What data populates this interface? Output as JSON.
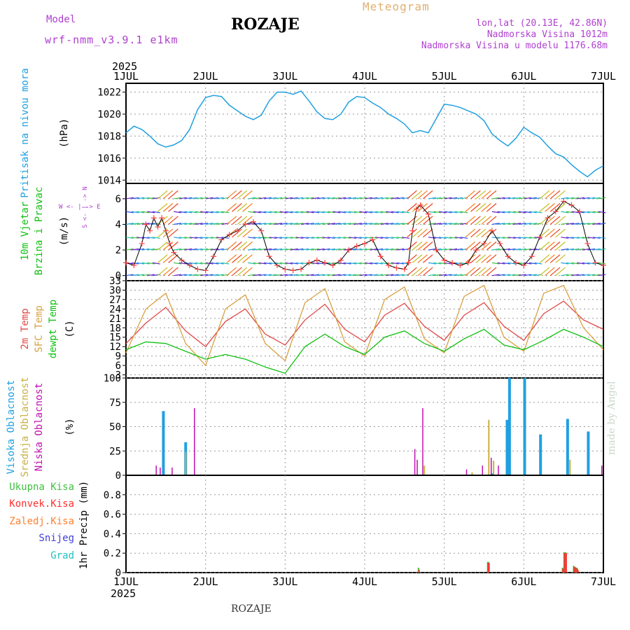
{
  "header": {
    "model_label": "Model",
    "model_name": "wrf-nmm_v3.9.1 e1km",
    "title": "ROZAJE",
    "meteogram_label": "Meteogram",
    "lonlat": "lon,lat (20.13E, 42.86N)",
    "elevation": "Nadmorska Visina 1012m",
    "model_elevation": "Nadmorska Visina u modelu 1176.68m"
  },
  "footer": {
    "station": "ROZAJE",
    "credit": "made by Angel"
  },
  "time_axis": {
    "year": "2025",
    "ticks": [
      "1JUL",
      "2JUL",
      "3JUL",
      "4JUL",
      "5JUL",
      "6JUL",
      "7JUL"
    ]
  },
  "colors": {
    "pressure": "#20a0e0",
    "wind_line": "#000000",
    "wind_marker": "#ff4040",
    "t2m": "#e04848",
    "sfc": "#d8a040",
    "dewpt": "#10c010",
    "high_cloud": "#20a0e0",
    "mid_cloud": "#c8b040",
    "low_cloud": "#c010b0",
    "total_precip": "#40c040",
    "conv_precip": "#ff3030",
    "frz_precip": "#ff8030",
    "snow": "#4040e0",
    "hail": "#20c0c0"
  },
  "panels": {
    "pressure": {
      "label": "Pritisak na nivou mora",
      "unit": "(hPa)"
    },
    "wind": {
      "label1": "10m Vjetar",
      "label2": "Brzina i Pravac",
      "unit": "(m/s)",
      "compass": "W <- | -> E",
      "compass_ns": "S <- | -> N"
    },
    "temp": {
      "label_t2m": "2m Temp",
      "label_sfc": "SFC Temp",
      "label_dew": "dewpt Temp",
      "unit": "(C)"
    },
    "cloud": {
      "label_high": "Visoka Oblacnost",
      "label_mid": "Srednja Oblacnost",
      "label_low": "Niska Oblacnost",
      "unit": "(%)"
    },
    "precip": {
      "label_total": "Ukupna Kisa",
      "label_conv": "Konvek.Kisa",
      "label_frz": "Zaledj.Kisa",
      "label_snow": "Snijeg",
      "label_hail": "Grad",
      "unit": "1hr Precip (mm)"
    }
  },
  "chart_data": [
    {
      "type": "line",
      "title": "Pritisak na nivou mora",
      "ylabel": "(hPa)",
      "x_unit": "days since 1JUL 00 UTC",
      "ylim": [
        1013.7,
        1022.8
      ],
      "yticks": [
        1014,
        1016,
        1018,
        1020,
        1022
      ],
      "grid": true,
      "series": [
        {
          "name": "Pritisak na nivou mora",
          "x": [
            0,
            0.1,
            0.2,
            0.3,
            0.4,
            0.5,
            0.6,
            0.7,
            0.8,
            0.9,
            1.0,
            1.1,
            1.2,
            1.3,
            1.4,
            1.5,
            1.6,
            1.7,
            1.8,
            1.9,
            2.0,
            2.1,
            2.2,
            2.3,
            2.4,
            2.5,
            2.6,
            2.7,
            2.8,
            2.9,
            3.0,
            3.1,
            3.2,
            3.3,
            3.4,
            3.5,
            3.6,
            3.7,
            3.8,
            3.9,
            4.0,
            4.1,
            4.2,
            4.3,
            4.4,
            4.5,
            4.6,
            4.7,
            4.8,
            4.9,
            5.0,
            5.1,
            5.2,
            5.3,
            5.4,
            5.5,
            5.6,
            5.7,
            5.8,
            5.9,
            6.0
          ],
          "y": [
            1018.3,
            1018.9,
            1018.6,
            1018.0,
            1017.3,
            1017.0,
            1017.2,
            1017.6,
            1018.6,
            1020.4,
            1021.5,
            1021.7,
            1021.6,
            1020.8,
            1020.3,
            1019.8,
            1019.5,
            1019.9,
            1021.2,
            1022.0,
            1022.0,
            1021.8,
            1022.1,
            1021.2,
            1020.2,
            1019.6,
            1019.5,
            1020.0,
            1021.1,
            1021.6,
            1021.5,
            1021.0,
            1020.6,
            1020.0,
            1019.6,
            1019.1,
            1018.3,
            1018.5,
            1018.3,
            1019.6,
            1020.9,
            1020.8,
            1020.6,
            1020.3,
            1020.0,
            1019.4,
            1018.2,
            1017.6,
            1017.1,
            1017.8,
            1018.8,
            1018.3,
            1017.9,
            1017.1,
            1016.4,
            1016.1,
            1015.4,
            1014.8,
            1014.3,
            1014.9,
            1015.3
          ]
        }
      ]
    },
    {
      "type": "line",
      "title": "10m Vjetar Brzina i Pravac",
      "ylabel": "(m/s)",
      "x_unit": "days since 1JUL 00 UTC",
      "ylim": [
        -0.4,
        7.2
      ],
      "yticks": [
        0,
        2,
        4,
        6
      ],
      "grid": true,
      "series": [
        {
          "name": "Brzina",
          "x": [
            0,
            0.1,
            0.2,
            0.25,
            0.3,
            0.35,
            0.4,
            0.45,
            0.5,
            0.55,
            0.6,
            0.7,
            0.8,
            0.9,
            1.0,
            1.1,
            1.2,
            1.3,
            1.4,
            1.5,
            1.6,
            1.7,
            1.8,
            1.9,
            2.0,
            2.1,
            2.2,
            2.3,
            2.4,
            2.5,
            2.6,
            2.7,
            2.8,
            2.9,
            3.0,
            3.1,
            3.2,
            3.3,
            3.4,
            3.5,
            3.55,
            3.6,
            3.65,
            3.7,
            3.8,
            3.9,
            4.0,
            4.1,
            4.2,
            4.3,
            4.4,
            4.5,
            4.6,
            4.7,
            4.8,
            4.9,
            5.0,
            5.1,
            5.2,
            5.3,
            5.4,
            5.5,
            5.6,
            5.7,
            5.8,
            5.9,
            6.0
          ],
          "y": [
            1.0,
            0.8,
            2.5,
            4.0,
            3.5,
            4.5,
            3.8,
            4.5,
            3.5,
            2.5,
            1.8,
            1.2,
            0.8,
            0.5,
            0.4,
            1.5,
            2.8,
            3.2,
            3.5,
            4.0,
            4.2,
            3.5,
            1.5,
            0.8,
            0.5,
            0.4,
            0.5,
            1.0,
            1.2,
            1.0,
            0.8,
            1.2,
            2.0,
            2.3,
            2.5,
            2.8,
            1.5,
            0.8,
            0.6,
            0.5,
            1.0,
            3.5,
            5.2,
            5.5,
            4.8,
            2.0,
            1.2,
            1.0,
            0.8,
            1.0,
            2.0,
            2.5,
            3.5,
            2.5,
            1.5,
            1.0,
            0.8,
            1.5,
            3.0,
            4.5,
            5.0,
            5.8,
            5.5,
            5.0,
            2.5,
            1.0,
            0.8
          ]
        }
      ]
    },
    {
      "type": "line",
      "title": "Temperature",
      "ylabel": "(C)",
      "x_unit": "days since 1JUL 00 UTC",
      "ylim": [
        2,
        33
      ],
      "yticks": [
        3,
        6,
        9,
        12,
        15,
        18,
        21,
        24,
        27,
        30,
        33
      ],
      "grid": true,
      "series": [
        {
          "name": "2m Temp",
          "x": [
            0,
            0.25,
            0.5,
            0.75,
            1.0,
            1.25,
            1.5,
            1.75,
            2.0,
            2.25,
            2.5,
            2.75,
            3.0,
            3.25,
            3.5,
            3.75,
            4.0,
            4.25,
            4.5,
            4.75,
            5.0,
            5.25,
            5.5,
            5.75,
            6.0
          ],
          "y": [
            13.0,
            19.5,
            24.5,
            17.0,
            12.0,
            20.0,
            24.0,
            16.0,
            12.5,
            20.5,
            25.5,
            17.5,
            13.5,
            22.0,
            25.8,
            18.5,
            14.0,
            22.0,
            26.0,
            18.5,
            14.0,
            22.5,
            26.5,
            20.5,
            17.5
          ]
        },
        {
          "name": "SFC Temp",
          "x": [
            0,
            0.25,
            0.5,
            0.75,
            1.0,
            1.25,
            1.5,
            1.75,
            2.0,
            2.25,
            2.5,
            2.75,
            3.0,
            3.25,
            3.5,
            3.75,
            4.0,
            4.25,
            4.5,
            4.75,
            5.0,
            5.25,
            5.5,
            5.75,
            6.0
          ],
          "y": [
            10.0,
            24.0,
            29.0,
            13.0,
            6.0,
            24.0,
            28.5,
            13.0,
            7.5,
            26.0,
            30.5,
            13.5,
            9.0,
            27.0,
            31.0,
            14.5,
            10.0,
            28.0,
            31.5,
            15.0,
            10.5,
            29.0,
            31.5,
            18.0,
            11.0
          ]
        },
        {
          "name": "dewpt Temp",
          "x": [
            0,
            0.25,
            0.5,
            0.75,
            1.0,
            1.25,
            1.5,
            1.75,
            2.0,
            2.25,
            2.5,
            2.75,
            3.0,
            3.25,
            3.5,
            3.75,
            4.0,
            4.25,
            4.5,
            4.75,
            5.0,
            5.25,
            5.5,
            5.75,
            6.0
          ],
          "y": [
            11.0,
            13.5,
            13.0,
            10.5,
            8.0,
            9.5,
            8.0,
            5.5,
            3.5,
            12.0,
            16.0,
            12.0,
            9.5,
            15.0,
            17.0,
            13.0,
            10.5,
            14.5,
            17.5,
            12.5,
            11.0,
            14.0,
            17.5,
            15.0,
            12.0
          ]
        }
      ]
    },
    {
      "type": "bar",
      "title": "Oblacnost",
      "ylabel": "(%)",
      "x_unit": "days since 1JUL 00 UTC",
      "ylim": [
        0,
        100
      ],
      "yticks": [
        0,
        25,
        50,
        75,
        100
      ],
      "grid": true,
      "series": [
        {
          "name": "Visoka Oblacnost",
          "x": [
            0.47,
            0.75,
            4.61,
            4.79,
            4.82,
            5.01,
            5.21,
            5.55,
            5.81,
            5.84,
            5.91,
            6.49,
            6.73
          ],
          "y": [
            66,
            34,
            2,
            57,
            100,
            100,
            42,
            58,
            45,
            0,
            0,
            58,
            45
          ]
        },
        {
          "name": "Srednja Oblacnost",
          "x": [
            0.75,
            3.75,
            4.35,
            4.56,
            4.62,
            5.58,
            6.43,
            6.55,
            6.62,
            6.7,
            6.78
          ],
          "y": [
            24,
            10,
            3,
            57,
            15,
            16,
            10,
            30,
            30,
            45,
            6
          ]
        },
        {
          "name": "Niska Oblacnost",
          "x": [
            0.38,
            0.43,
            0.58,
            0.86,
            3.63,
            3.66,
            3.73,
            4.28,
            4.48,
            4.59,
            4.68,
            5.98,
            6.47,
            6.52,
            6.57,
            6.75
          ],
          "y": [
            10,
            8,
            8,
            69,
            27,
            16,
            69,
            6,
            10,
            18,
            10,
            10,
            36,
            30,
            8,
            64
          ]
        }
      ]
    },
    {
      "type": "bar",
      "title": "1hr Precip",
      "ylabel": "1hr Precip (mm)",
      "x_unit": "days since 1JUL 00 UTC",
      "ylim": [
        0,
        1.0
      ],
      "yticks": [
        0,
        0.2,
        0.4,
        0.6,
        0.8
      ],
      "grid": true,
      "series": [
        {
          "name": "Ukupna Kisa",
          "x": [
            3.68,
            4.55,
            4.56,
            5.49,
            5.51,
            5.53,
            5.63,
            5.65,
            5.67,
            5.68
          ],
          "y": [
            0.05,
            0.11,
            0.11,
            0.05,
            0.21,
            0.21,
            0.07,
            0.06,
            0.05,
            0.03
          ]
        },
        {
          "name": "Konvek.Kisa",
          "x": [
            3.68,
            4.55,
            4.56,
            5.49,
            5.51,
            5.53,
            5.63,
            5.65,
            5.67,
            5.68
          ],
          "y": [
            0.03,
            0.1,
            0.1,
            0.04,
            0.2,
            0.2,
            0.06,
            0.05,
            0.04,
            0.02
          ]
        },
        {
          "name": "Zaledj.Kisa",
          "x": [],
          "y": []
        },
        {
          "name": "Snijeg",
          "x": [],
          "y": []
        },
        {
          "name": "Grad",
          "x": [],
          "y": []
        }
      ]
    }
  ]
}
